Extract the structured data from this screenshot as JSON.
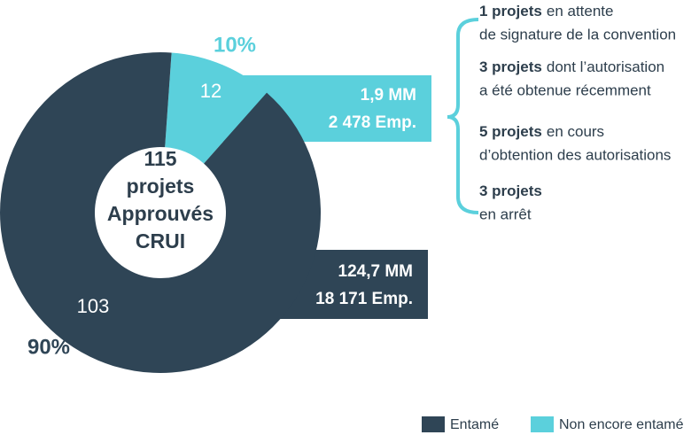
{
  "chart_data": {
    "type": "donut",
    "categories": [
      "Entamé",
      "Non encore entamé"
    ],
    "values": [
      103,
      12
    ],
    "colors": [
      "#2f4556",
      "#5bd0dc"
    ],
    "percentages": [
      {
        "value": 90,
        "label": "90%"
      },
      {
        "value": 10,
        "label": "10%"
      }
    ],
    "center_text": [
      "115",
      "projets",
      "Approuvés",
      "CRUI"
    ],
    "boxes": [
      [
        "124,7 MM",
        "18 171 Emp."
      ],
      [
        "1,9 MM",
        "2 478 Emp."
      ]
    ],
    "notes": [
      {
        "bold": "1 projets",
        "line1": "en attente",
        "line2": "de signature de la convention"
      },
      {
        "bold": "3 projets",
        "line1": "dont l’autorisation",
        "line2": "a été obtenue récemment"
      },
      {
        "bold": "5 projets",
        "line1": "en cours",
        "line2": "d’obtention des autorisations"
      },
      {
        "bold": "3 projets",
        "line2": "en arrêt"
      }
    ],
    "legend": true
  }
}
